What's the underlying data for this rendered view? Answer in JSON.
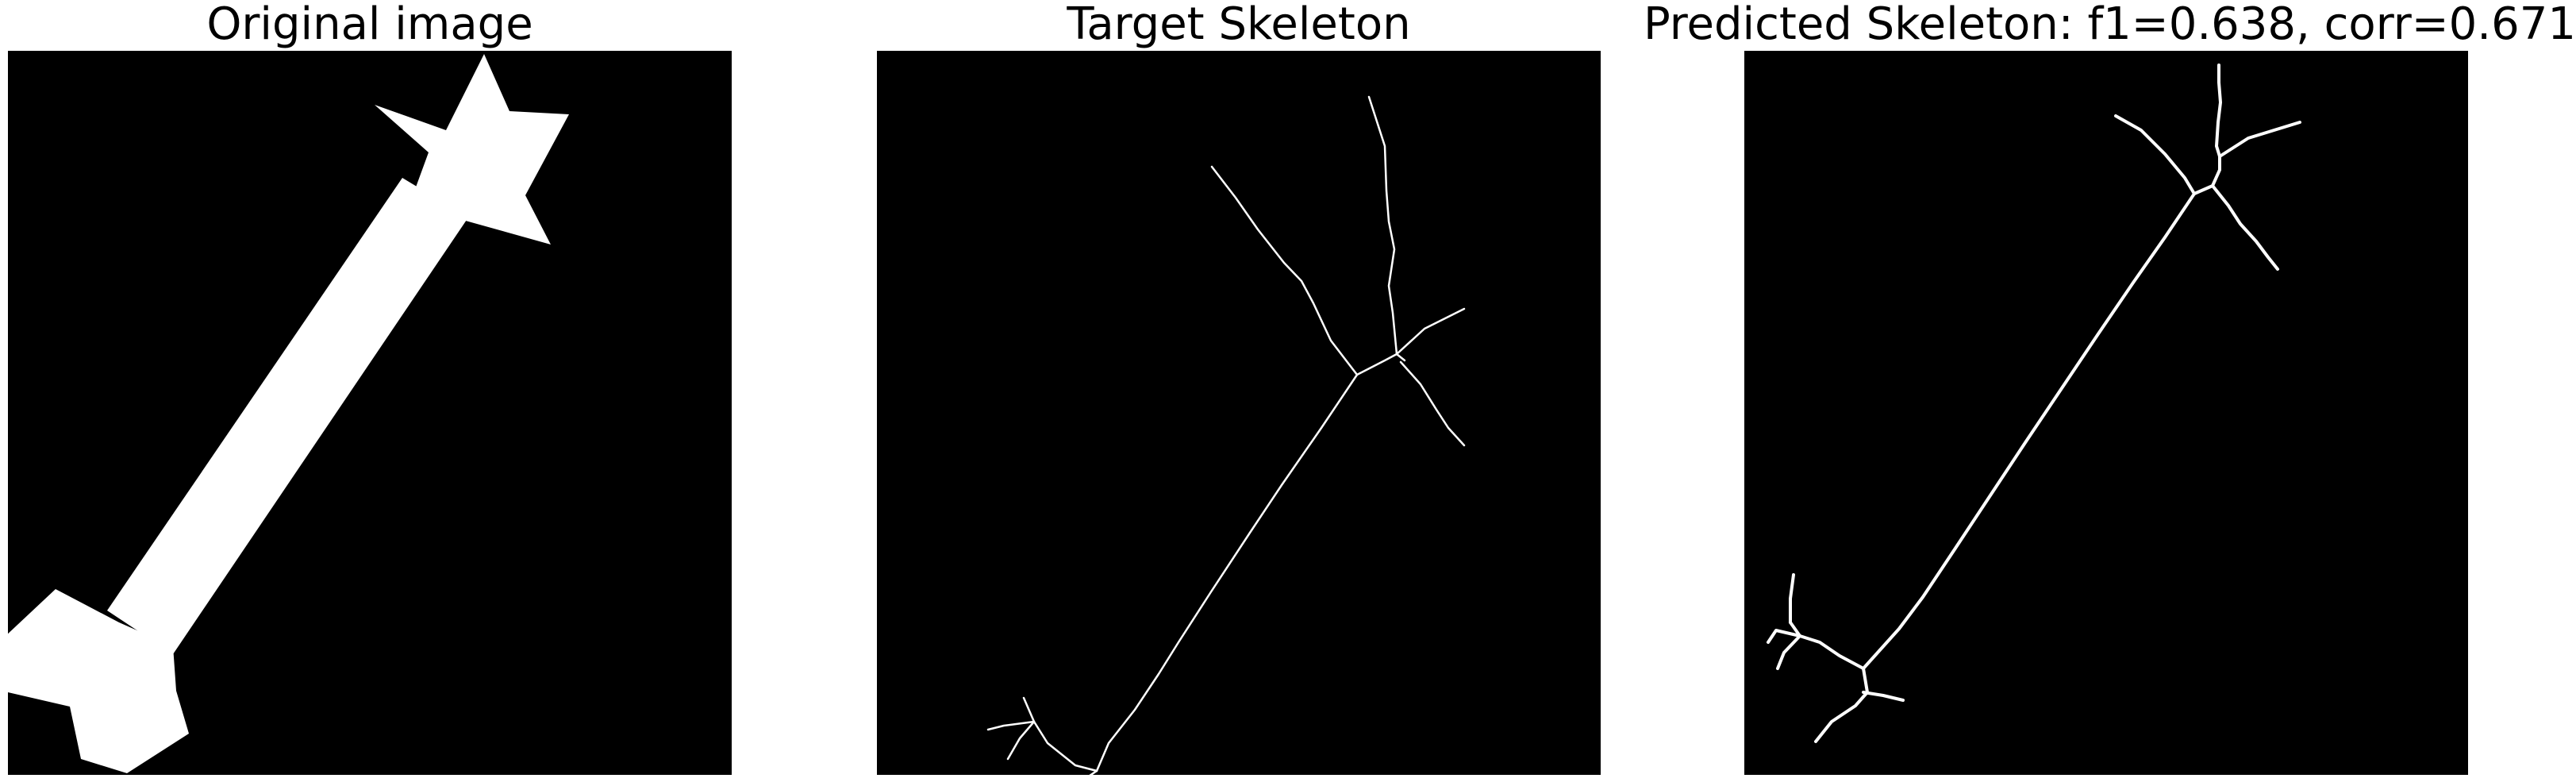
{
  "panels": [
    {
      "title": "Original image"
    },
    {
      "title": "Target Skeleton"
    },
    {
      "title": "Predicted Skeleton: f1=0.638, corr=0.671"
    }
  ],
  "colors": {
    "background": "#000000",
    "foreground": "#ffffff"
  }
}
